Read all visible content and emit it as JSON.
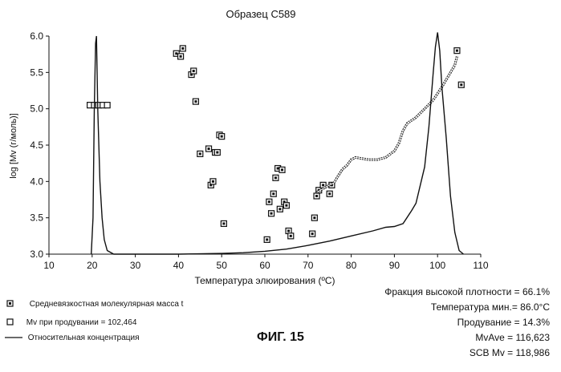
{
  "title": "Образец C589",
  "figure_label": "ФИГ. 15",
  "legend": {
    "items": [
      {
        "label": "Средневязкостная молекулярная масса t"
      },
      {
        "label": "Mv  при продувании  = 102,464"
      },
      {
        "label": "Относительная концентрация"
      }
    ]
  },
  "stats": [
    "Фракция высокой плотности = 66.1%",
    "Температура мин.= 86.0°C",
    "Продувание = 14.3%",
    "MvAve = 116,623",
    "SCB Mv = 118,986"
  ],
  "colors": {
    "ink": "#111111",
    "background": "#ffffff"
  },
  "chart_data": {
    "type": "scatter",
    "title": "Образец C589",
    "xlabel": "Температура элюирования (ºC)",
    "ylabel": "log [Mv (г/моль)]",
    "xlim": [
      10,
      110
    ],
    "ylim": [
      3.0,
      6.0
    ],
    "xticks": [
      10,
      20,
      30,
      40,
      50,
      60,
      70,
      80,
      90,
      100,
      110
    ],
    "yticks": [
      3.0,
      3.5,
      4.0,
      4.5,
      5.0,
      5.5,
      6.0
    ],
    "series": [
      {
        "name": "Средневязкостная молекулярная масса t",
        "marker": "square",
        "points": [
          [
            39.5,
            5.76
          ],
          [
            40.5,
            5.72
          ],
          [
            41,
            5.83
          ],
          [
            43,
            5.47
          ],
          [
            43.5,
            5.52
          ],
          [
            44,
            5.1
          ],
          [
            45,
            4.38
          ],
          [
            47,
            4.45
          ],
          [
            47.5,
            3.95
          ],
          [
            48,
            4.0
          ],
          [
            48.5,
            4.4
          ],
          [
            49,
            4.4
          ],
          [
            49.5,
            4.64
          ],
          [
            50,
            4.62
          ],
          [
            50.5,
            3.42
          ],
          [
            60.5,
            3.2
          ],
          [
            61,
            3.72
          ],
          [
            61.5,
            3.56
          ],
          [
            62,
            3.83
          ],
          [
            62.5,
            4.05
          ],
          [
            63,
            4.18
          ],
          [
            63.5,
            3.62
          ],
          [
            64,
            4.16
          ],
          [
            64.5,
            3.72
          ],
          [
            65,
            3.67
          ],
          [
            65.5,
            3.32
          ],
          [
            66,
            3.25
          ],
          [
            71,
            3.28
          ],
          [
            71.5,
            3.5
          ],
          [
            72,
            3.8
          ],
          [
            72.5,
            3.88
          ],
          [
            73.5,
            3.95
          ],
          [
            75,
            3.83
          ],
          [
            75.5,
            3.95
          ],
          [
            104.5,
            5.8
          ],
          [
            105.5,
            5.33
          ]
        ]
      },
      {
        "name": "Mv  при продувании  = 102,464",
        "marker": "hollow-square",
        "points": [
          [
            19.5,
            5.05
          ],
          [
            20.5,
            5.05
          ],
          [
            21.5,
            5.05
          ],
          [
            22.5,
            5.05
          ],
          [
            23.5,
            5.05
          ]
        ]
      },
      {
        "name": "Mv trend",
        "marker": "line",
        "points": [
          [
            72,
            3.85
          ],
          [
            74,
            3.92
          ],
          [
            76,
            3.98
          ],
          [
            77,
            4.08
          ],
          [
            78,
            4.17
          ],
          [
            79,
            4.22
          ],
          [
            80,
            4.3
          ],
          [
            81,
            4.33
          ],
          [
            82,
            4.32
          ],
          [
            84,
            4.3
          ],
          [
            86,
            4.3
          ],
          [
            88,
            4.33
          ],
          [
            90,
            4.42
          ],
          [
            91,
            4.52
          ],
          [
            92,
            4.7
          ],
          [
            93,
            4.8
          ],
          [
            95,
            4.88
          ],
          [
            97,
            5.0
          ],
          [
            99,
            5.12
          ],
          [
            101,
            5.3
          ],
          [
            102,
            5.4
          ],
          [
            104,
            5.6
          ],
          [
            104.5,
            5.72
          ]
        ]
      },
      {
        "name": "Относительная концентрация",
        "marker": "line",
        "points": [
          [
            19.8,
            3.0
          ],
          [
            20.2,
            3.5
          ],
          [
            20.5,
            5.0
          ],
          [
            20.8,
            5.9
          ],
          [
            21.0,
            6.0
          ],
          [
            21.3,
            5.0
          ],
          [
            21.8,
            4.0
          ],
          [
            22.3,
            3.5
          ],
          [
            22.8,
            3.2
          ],
          [
            23.5,
            3.05
          ],
          [
            25,
            3.0
          ],
          [
            40,
            3.0
          ],
          [
            50,
            3.01
          ],
          [
            55,
            3.02
          ],
          [
            60,
            3.04
          ],
          [
            65,
            3.07
          ],
          [
            70,
            3.12
          ],
          [
            75,
            3.18
          ],
          [
            80,
            3.25
          ],
          [
            85,
            3.32
          ],
          [
            88,
            3.37
          ],
          [
            90,
            3.38
          ],
          [
            92,
            3.42
          ],
          [
            94,
            3.6
          ],
          [
            95,
            3.7
          ],
          [
            97,
            4.2
          ],
          [
            98,
            4.75
          ],
          [
            99,
            5.5
          ],
          [
            99.5,
            5.85
          ],
          [
            100,
            6.05
          ],
          [
            100.5,
            5.8
          ],
          [
            101,
            5.3
          ],
          [
            102,
            4.6
          ],
          [
            103,
            3.8
          ],
          [
            104,
            3.3
          ],
          [
            105,
            3.05
          ],
          [
            106,
            3.0
          ]
        ]
      }
    ]
  }
}
